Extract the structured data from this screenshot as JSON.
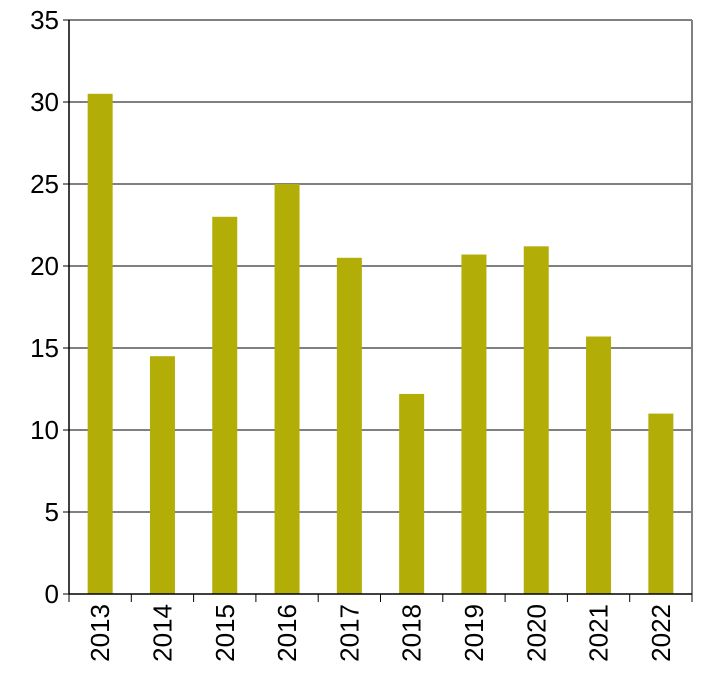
{
  "chart_data": {
    "type": "bar",
    "title": "",
    "xlabel": "",
    "ylabel": "",
    "categories": [
      "2013",
      "2014",
      "2015",
      "2016",
      "2017",
      "2018",
      "2019",
      "2020",
      "2021",
      "2022"
    ],
    "values": [
      30.5,
      14.5,
      23.0,
      25.0,
      20.5,
      12.2,
      20.7,
      21.2,
      15.7,
      11.0
    ],
    "ylim": [
      0,
      35
    ],
    "yticks": [
      "0",
      "5",
      "10",
      "15",
      "20",
      "25",
      "30",
      "35"
    ],
    "grid": "horizontal",
    "legend": "none",
    "bar_color": "#b3ad07"
  }
}
